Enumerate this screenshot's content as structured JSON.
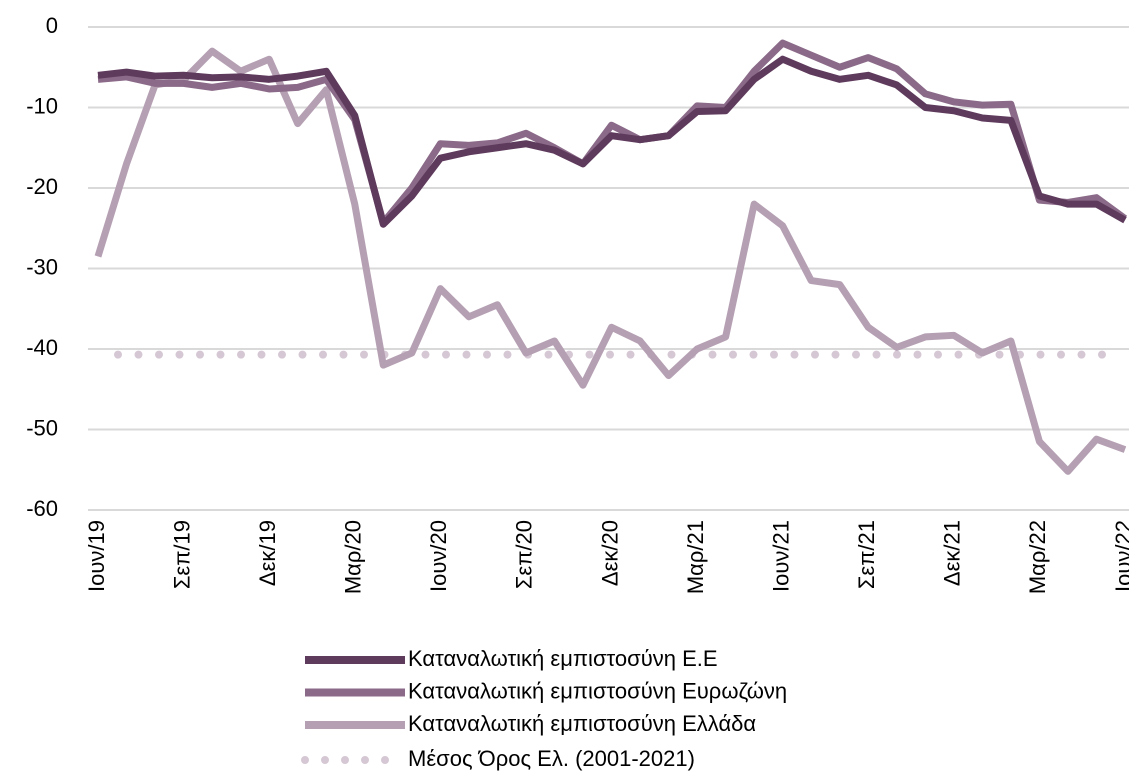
{
  "chart_data": {
    "type": "line",
    "categories": [
      "Ιουν/19",
      null,
      null,
      "Σεπ/19",
      null,
      null,
      "Δεκ/19",
      null,
      null,
      "Μαρ/20",
      null,
      null,
      "Ιουν/20",
      null,
      null,
      "Σεπ/20",
      null,
      null,
      "Δεκ/20",
      null,
      null,
      "Μαρ/21",
      null,
      null,
      "Ιουν/21",
      null,
      null,
      "Σεπ/21",
      null,
      null,
      "Δεκ/21",
      null,
      null,
      "Μαρ/22",
      null,
      null,
      "Ιουν/22"
    ],
    "series": [
      {
        "name": "Καταναλωτική εμπιστοσύνη Ε.Ε",
        "color": "#5e3a5c",
        "values": [
          -6,
          -5.6,
          -6.1,
          -6,
          -6.3,
          -6.2,
          -6.5,
          -6.1,
          -5.5,
          -11,
          -24.5,
          -21,
          -16.3,
          -15.5,
          -15,
          -14.5,
          -15.3,
          -17,
          -13.5,
          -14,
          -13.5,
          -10.5,
          -10.4,
          -6.5,
          -4,
          -5.5,
          -6.5,
          -6,
          -7.2,
          -10,
          -10.4,
          -11.3,
          -11.6,
          -21,
          -22,
          -22,
          -24
        ]
      },
      {
        "name": "Καταναλωτική εμπιστοσύνη Ευρωζώνη",
        "color": "#8a6a88",
        "values": [
          -6.5,
          -6.2,
          -7,
          -7,
          -7.5,
          -7,
          -7.7,
          -7.5,
          -6.5,
          -11.5,
          -24.3,
          -20,
          -14.5,
          -14.7,
          -14.4,
          -13.2,
          -15,
          -17,
          -12.2,
          -14,
          -13.5,
          -9.8,
          -10,
          -5.5,
          -2,
          -3.5,
          -5,
          -3.8,
          -5.2,
          -8.3,
          -9.3,
          -9.7,
          -9.6,
          -21.5,
          -21.8,
          -21.2,
          -23.8
        ]
      },
      {
        "name": "Καταναλωτική εμπιστοσύνη Ελλάδα",
        "color": "#b5a0b3",
        "values": [
          -28.5,
          -17,
          -7.2,
          -6.6,
          -3,
          -5.5,
          -4,
          -12,
          -7.8,
          -22,
          -42,
          -40.5,
          -32.5,
          -36,
          -34.5,
          -40.5,
          -39,
          -44.5,
          -37.3,
          -39,
          -43.3,
          -40,
          -38.5,
          -22,
          -24.7,
          -31.5,
          -32,
          -37.3,
          -39.8,
          -38.5,
          -38.3,
          -40.5,
          -39,
          -51.5,
          -55.2,
          -51.2,
          -52.5
        ]
      }
    ],
    "reference_line": {
      "name": " Μέσος Όρος Ελ. (2001-2021)",
      "value": -40.7,
      "color": "#d5c8d4"
    },
    "ylim": [
      -60,
      0
    ],
    "yticks": [
      0,
      -10,
      -20,
      -30,
      -40,
      -50,
      -60
    ],
    "grid": true
  }
}
